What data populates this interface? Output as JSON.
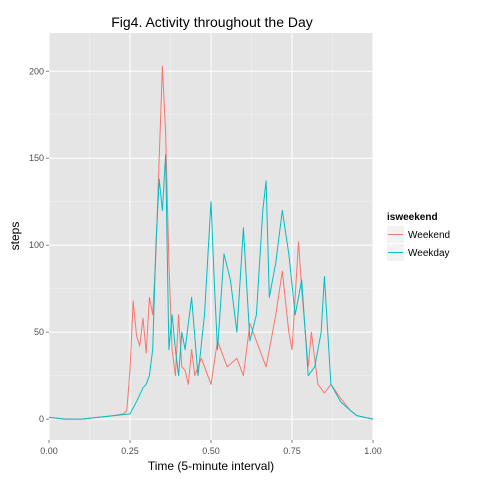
{
  "chart_data": {
    "type": "line",
    "title": "Fig4. Activity throughout the Day",
    "xlabel": "Time (5-minute interval)",
    "ylabel": "steps",
    "xlim": [
      0,
      1
    ],
    "ylim": [
      -12,
      222
    ],
    "x_ticks": [
      0.0,
      0.25,
      0.5,
      0.75,
      1.0
    ],
    "x_tick_labels": [
      "0.00",
      "0.25",
      "0.50",
      "0.75",
      "1.00"
    ],
    "y_ticks": [
      0,
      50,
      100,
      150,
      200
    ],
    "y_tick_labels": [
      "0",
      "50",
      "100",
      "150",
      "200"
    ],
    "grid": true,
    "legend_title": "isweekend",
    "legend_position": "right",
    "series": [
      {
        "name": "Weekend",
        "color": "#F8766D",
        "x": [
          0.0,
          0.05,
          0.1,
          0.15,
          0.2,
          0.23,
          0.24,
          0.25,
          0.26,
          0.27,
          0.28,
          0.29,
          0.3,
          0.31,
          0.32,
          0.33,
          0.34,
          0.35,
          0.36,
          0.37,
          0.38,
          0.39,
          0.4,
          0.41,
          0.42,
          0.43,
          0.44,
          0.45,
          0.47,
          0.5,
          0.52,
          0.55,
          0.58,
          0.6,
          0.62,
          0.65,
          0.67,
          0.7,
          0.72,
          0.74,
          0.75,
          0.77,
          0.78,
          0.8,
          0.81,
          0.83,
          0.85,
          0.87,
          0.9,
          0.93,
          0.95,
          1.0
        ],
        "y": [
          1,
          0,
          0,
          1,
          2,
          3,
          5,
          28,
          68,
          48,
          42,
          58,
          38,
          70,
          60,
          95,
          150,
          203,
          165,
          90,
          40,
          25,
          60,
          30,
          28,
          20,
          40,
          25,
          35,
          20,
          45,
          30,
          35,
          25,
          55,
          40,
          30,
          60,
          85,
          50,
          40,
          102,
          75,
          30,
          50,
          20,
          15,
          20,
          12,
          5,
          2,
          0
        ]
      },
      {
        "name": "Weekday",
        "color": "#00BFC4",
        "x": [
          0.0,
          0.05,
          0.1,
          0.15,
          0.2,
          0.25,
          0.27,
          0.29,
          0.3,
          0.31,
          0.32,
          0.33,
          0.34,
          0.35,
          0.36,
          0.37,
          0.38,
          0.39,
          0.4,
          0.41,
          0.42,
          0.44,
          0.46,
          0.48,
          0.5,
          0.51,
          0.52,
          0.54,
          0.56,
          0.58,
          0.6,
          0.62,
          0.64,
          0.66,
          0.67,
          0.68,
          0.7,
          0.72,
          0.74,
          0.76,
          0.78,
          0.8,
          0.82,
          0.84,
          0.85,
          0.87,
          0.9,
          0.93,
          0.95,
          1.0
        ],
        "y": [
          1,
          0,
          0,
          1,
          2,
          3,
          10,
          18,
          20,
          25,
          40,
          100,
          138,
          120,
          152,
          40,
          60,
          40,
          25,
          50,
          40,
          70,
          25,
          60,
          125,
          80,
          40,
          95,
          80,
          50,
          110,
          45,
          60,
          120,
          137,
          70,
          90,
          120,
          95,
          60,
          80,
          25,
          30,
          50,
          82,
          20,
          10,
          5,
          2,
          0
        ]
      }
    ]
  }
}
